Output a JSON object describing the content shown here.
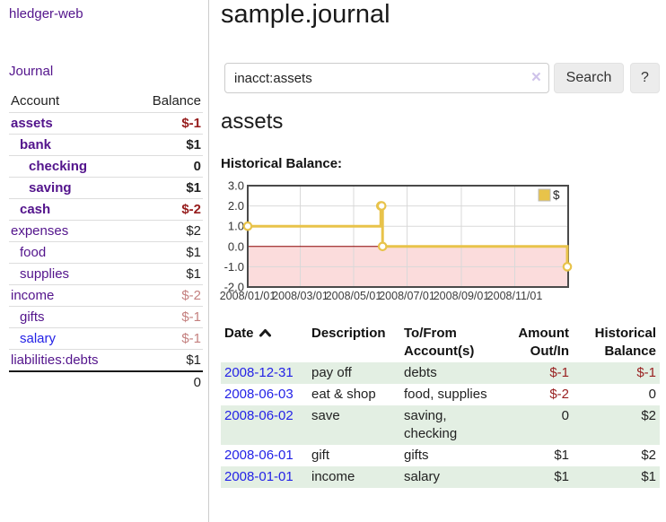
{
  "app": {
    "title": "hledger-web"
  },
  "sidebar": {
    "journal_link": "Journal",
    "headers": [
      "Account",
      "Balance"
    ],
    "accounts": [
      {
        "account": "assets",
        "balance": "$-1",
        "level": 1,
        "bold": true,
        "neg": "strong"
      },
      {
        "account": "bank",
        "balance": "$1",
        "level": 2,
        "bold": true,
        "neg": ""
      },
      {
        "account": "checking",
        "balance": "0",
        "level": 3,
        "bold": true,
        "neg": ""
      },
      {
        "account": "saving",
        "balance": "$1",
        "level": 3,
        "bold": true,
        "neg": ""
      },
      {
        "account": "cash",
        "balance": "$-2",
        "level": 2,
        "bold": true,
        "neg": "strong"
      },
      {
        "account": "expenses",
        "balance": "$2",
        "level": 1,
        "bold": false,
        "neg": ""
      },
      {
        "account": "food",
        "balance": "$1",
        "level": 2,
        "bold": false,
        "neg": ""
      },
      {
        "account": "supplies",
        "balance": "$1",
        "level": 2,
        "bold": false,
        "neg": ""
      },
      {
        "account": "income",
        "balance": "$-2",
        "level": 1,
        "bold": false,
        "neg": "muted"
      },
      {
        "account": "gifts",
        "balance": "$-1",
        "level": 2,
        "bold": false,
        "neg": "muted"
      },
      {
        "account": "salary",
        "balance": "$-1",
        "level": 2,
        "bold": false,
        "neg": "muted",
        "link_color": "blue"
      },
      {
        "account": "liabilities:debts",
        "balance": "$1",
        "level": 1,
        "bold": false,
        "neg": ""
      }
    ],
    "total": "0"
  },
  "main": {
    "title": "sample.journal",
    "search": {
      "value": "inacct:assets",
      "button_label": "Search",
      "help_label": "?"
    },
    "account_heading": "assets"
  },
  "icons": {
    "clear": "×",
    "sort_ascending": "chevron-up"
  },
  "chart_data": {
    "type": "line",
    "step": true,
    "title": "Historical Balance:",
    "legend": [
      {
        "label": "$",
        "color": "#e8c34a"
      }
    ],
    "legend_position": "top-right",
    "x_ticks": [
      "2008/01/01",
      "2008/03/01",
      "2008/05/01",
      "2008/07/01",
      "2008/09/01",
      "2008/11/01"
    ],
    "y_ticks": [
      "3.0",
      "2.0",
      "1.0",
      "0.0",
      "-1.0",
      "-2.0"
    ],
    "x_range": [
      "2008-01-01",
      "2009-01-01"
    ],
    "ylim": [
      -2,
      3
    ],
    "grid": true,
    "series": [
      {
        "name": "$",
        "points": [
          {
            "date": "2008-01-01",
            "value": 1
          },
          {
            "date": "2008-06-01",
            "value": 2
          },
          {
            "date": "2008-06-02",
            "value": 2
          },
          {
            "date": "2008-06-03",
            "value": 0
          },
          {
            "date": "2008-12-31",
            "value": -1
          }
        ]
      }
    ],
    "colors": {
      "line": "#e8c34a",
      "marker_fill": "#ffffff",
      "negative_region": "#fbdcdc",
      "zero_line": "#8b0000",
      "grid": "#d9d9d9",
      "border": "#4a4a4a"
    }
  },
  "register": {
    "headers": [
      "Date",
      "Description",
      "To/From Account(s)",
      "Amount Out/In",
      "Historical Balance"
    ],
    "rows": [
      {
        "date": "2008-12-31",
        "description": "pay off",
        "accounts": "debts",
        "amount": "$-1",
        "balance": "$-1"
      },
      {
        "date": "2008-06-03",
        "description": "eat & shop",
        "accounts": "food, supplies",
        "amount": "$-2",
        "balance": "0"
      },
      {
        "date": "2008-06-02",
        "description": "save",
        "accounts": "saving, checking",
        "amount": "0",
        "balance": "$2"
      },
      {
        "date": "2008-06-01",
        "description": "gift",
        "accounts": "gifts",
        "amount": "$1",
        "balance": "$2"
      },
      {
        "date": "2008-01-01",
        "description": "income",
        "accounts": "salary",
        "amount": "$1",
        "balance": "$1"
      }
    ]
  }
}
